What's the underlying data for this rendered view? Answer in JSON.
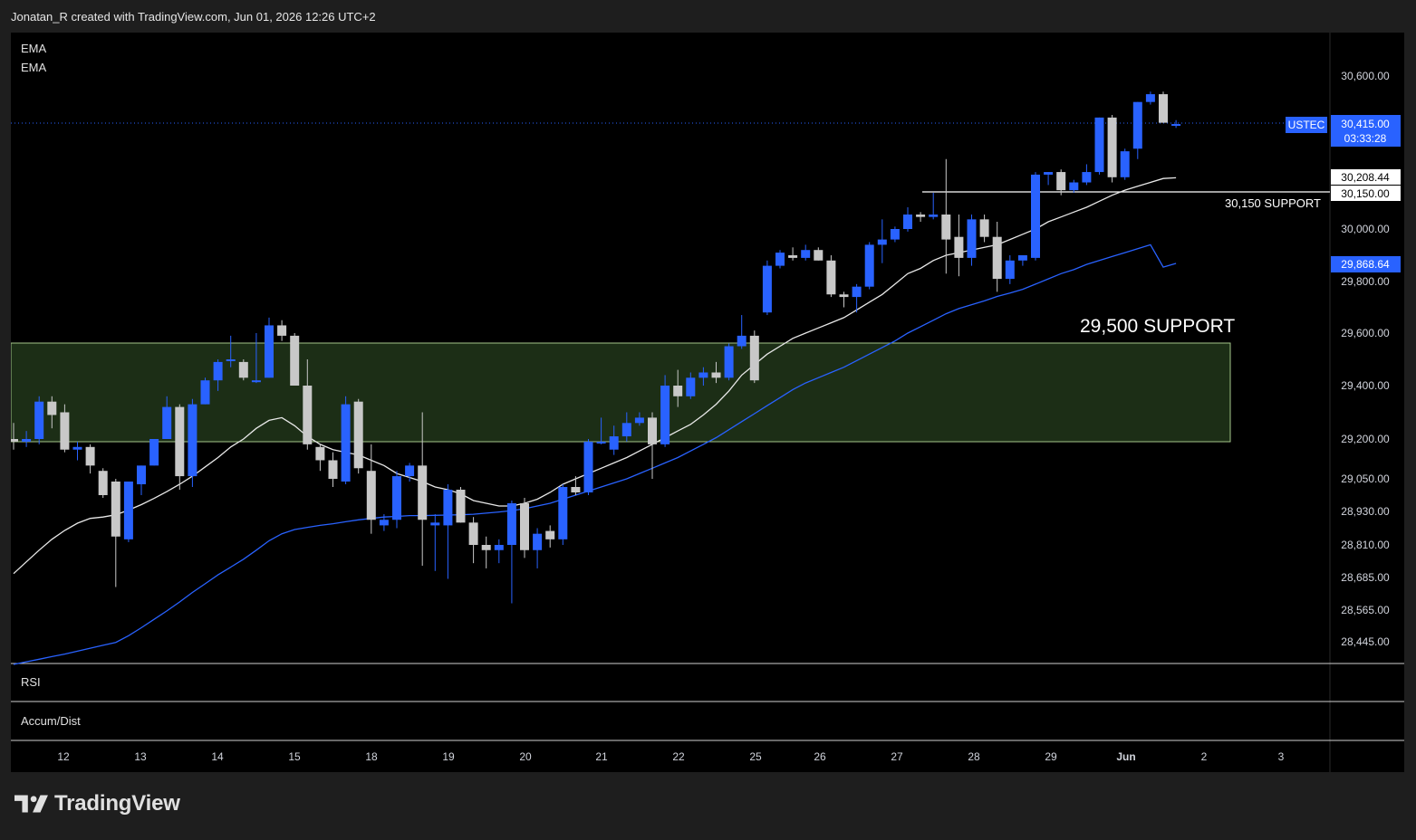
{
  "header": {
    "attribution": "Jonatan_R created with TradingView.com, Jun 01, 2026 12:26 UTC+2"
  },
  "footer": {
    "brand": "TradingView"
  },
  "indicators": {
    "ema1": "EMA",
    "ema2": "EMA",
    "rsi": "RSI",
    "accum": "Accum/Dist"
  },
  "price_axis": {
    "symbol": "USTEC",
    "last_price": "30,415.00",
    "countdown": "03:33:28",
    "ema_fast_label": "30,208.44",
    "support_label": "30,150.00",
    "ema_slow_label": "29,868.64"
  },
  "annotations": {
    "support_small": "30,150 SUPPORT",
    "support_big": "29,500 SUPPORT"
  },
  "colors": {
    "up": "#2962ff",
    "down": "#c8c8c8",
    "ema_fast": "#e8e8e8",
    "ema_slow": "#2962ff",
    "zone_fill": "#1c2e16",
    "zone_border": "#a5c58a"
  },
  "chart_data": {
    "type": "candlestick",
    "symbol": "USTEC",
    "timeframe_note": "hourly-like candles, ~7 per day",
    "y_ticks": [
      30600,
      30150,
      30000,
      29800,
      29600,
      29400,
      29200,
      29050,
      28930,
      28810,
      28685,
      28565,
      28445
    ],
    "y_tick_labels": [
      "30,600.00",
      "30,150.00",
      "30,000.00",
      "29,800.00",
      "29,600.00",
      "29,400.00",
      "29,200.00",
      "29,050.00",
      "28,930.00",
      "28,810.00",
      "28,685.00",
      "28,565.00",
      "28,445.00"
    ],
    "x_ticks": [
      "12",
      "13",
      "14",
      "15",
      "18",
      "19",
      "20",
      "21",
      "22",
      "25",
      "26",
      "27",
      "28",
      "29",
      "Jun",
      "2",
      "3"
    ],
    "candles": [
      {
        "o": 29200,
        "h": 29260,
        "l": 29160,
        "c": 29190
      },
      {
        "o": 29190,
        "h": 29230,
        "l": 29170,
        "c": 29200
      },
      {
        "o": 29200,
        "h": 29360,
        "l": 29180,
        "c": 29340
      },
      {
        "o": 29340,
        "h": 29360,
        "l": 29240,
        "c": 29290
      },
      {
        "o": 29300,
        "h": 29330,
        "l": 29150,
        "c": 29160
      },
      {
        "o": 29160,
        "h": 29190,
        "l": 29120,
        "c": 29170
      },
      {
        "o": 29170,
        "h": 29180,
        "l": 29070,
        "c": 29100
      },
      {
        "o": 29080,
        "h": 29090,
        "l": 28980,
        "c": 28990
      },
      {
        "o": 29040,
        "h": 29050,
        "l": 28650,
        "c": 28840
      },
      {
        "o": 28830,
        "h": 29040,
        "l": 28820,
        "c": 29040
      },
      {
        "o": 29030,
        "h": 29100,
        "l": 28990,
        "c": 29100
      },
      {
        "o": 29100,
        "h": 29200,
        "l": 29100,
        "c": 29200
      },
      {
        "o": 29200,
        "h": 29360,
        "l": 29200,
        "c": 29320
      },
      {
        "o": 29320,
        "h": 29330,
        "l": 29010,
        "c": 29060
      },
      {
        "o": 29060,
        "h": 29350,
        "l": 29020,
        "c": 29330
      },
      {
        "o": 29330,
        "h": 29430,
        "l": 29330,
        "c": 29420
      },
      {
        "o": 29420,
        "h": 29500,
        "l": 29380,
        "c": 29490
      },
      {
        "o": 29500,
        "h": 29590,
        "l": 29470,
        "c": 29500
      },
      {
        "o": 29490,
        "h": 29500,
        "l": 29420,
        "c": 29430
      },
      {
        "o": 29420,
        "h": 29600,
        "l": 29410,
        "c": 29420
      },
      {
        "o": 29430,
        "h": 29660,
        "l": 29430,
        "c": 29630
      },
      {
        "o": 29630,
        "h": 29650,
        "l": 29570,
        "c": 29590
      },
      {
        "o": 29590,
        "h": 29600,
        "l": 29400,
        "c": 29400
      },
      {
        "o": 29400,
        "h": 29500,
        "l": 29160,
        "c": 29180
      },
      {
        "o": 29170,
        "h": 29180,
        "l": 29080,
        "c": 29120
      },
      {
        "o": 29120,
        "h": 29150,
        "l": 29020,
        "c": 29050
      },
      {
        "o": 29040,
        "h": 29360,
        "l": 29030,
        "c": 29330
      },
      {
        "o": 29340,
        "h": 29350,
        "l": 29070,
        "c": 29090
      },
      {
        "o": 29080,
        "h": 29180,
        "l": 28850,
        "c": 28900
      },
      {
        "o": 28880,
        "h": 28920,
        "l": 28860,
        "c": 28900
      },
      {
        "o": 28900,
        "h": 29080,
        "l": 28870,
        "c": 29060
      },
      {
        "o": 29060,
        "h": 29110,
        "l": 29040,
        "c": 29100
      },
      {
        "o": 29100,
        "h": 29300,
        "l": 28730,
        "c": 28900
      },
      {
        "o": 28880,
        "h": 28920,
        "l": 28710,
        "c": 28890
      },
      {
        "o": 28880,
        "h": 29030,
        "l": 28680,
        "c": 29010
      },
      {
        "o": 29010,
        "h": 29020,
        "l": 28890,
        "c": 28890
      },
      {
        "o": 28890,
        "h": 28910,
        "l": 28740,
        "c": 28810
      },
      {
        "o": 28810,
        "h": 28840,
        "l": 28720,
        "c": 28790
      },
      {
        "o": 28790,
        "h": 28830,
        "l": 28740,
        "c": 28810
      },
      {
        "o": 28810,
        "h": 28970,
        "l": 28590,
        "c": 28960
      },
      {
        "o": 28960,
        "h": 28980,
        "l": 28760,
        "c": 28790
      },
      {
        "o": 28790,
        "h": 28870,
        "l": 28720,
        "c": 28850
      },
      {
        "o": 28860,
        "h": 28880,
        "l": 28800,
        "c": 28830
      },
      {
        "o": 28830,
        "h": 29030,
        "l": 28810,
        "c": 29020
      },
      {
        "o": 29020,
        "h": 29060,
        "l": 28990,
        "c": 29000
      },
      {
        "o": 29000,
        "h": 29200,
        "l": 28990,
        "c": 29190
      },
      {
        "o": 29190,
        "h": 29280,
        "l": 29180,
        "c": 29190
      },
      {
        "o": 29160,
        "h": 29250,
        "l": 29140,
        "c": 29210
      },
      {
        "o": 29210,
        "h": 29300,
        "l": 29190,
        "c": 29260
      },
      {
        "o": 29260,
        "h": 29300,
        "l": 29250,
        "c": 29280
      },
      {
        "o": 29280,
        "h": 29300,
        "l": 29050,
        "c": 29180
      },
      {
        "o": 29180,
        "h": 29440,
        "l": 29170,
        "c": 29400
      },
      {
        "o": 29400,
        "h": 29460,
        "l": 29320,
        "c": 29360
      },
      {
        "o": 29360,
        "h": 29450,
        "l": 29350,
        "c": 29430
      },
      {
        "o": 29430,
        "h": 29470,
        "l": 29400,
        "c": 29450
      },
      {
        "o": 29450,
        "h": 29490,
        "l": 29410,
        "c": 29430
      },
      {
        "o": 29430,
        "h": 29560,
        "l": 29420,
        "c": 29550
      },
      {
        "o": 29550,
        "h": 29670,
        "l": 29540,
        "c": 29590
      },
      {
        "o": 29590,
        "h": 29610,
        "l": 29410,
        "c": 29420
      },
      {
        "o": 29680,
        "h": 29880,
        "l": 29670,
        "c": 29860
      },
      {
        "o": 29860,
        "h": 29920,
        "l": 29850,
        "c": 29910
      },
      {
        "o": 29900,
        "h": 29930,
        "l": 29880,
        "c": 29890
      },
      {
        "o": 29890,
        "h": 29940,
        "l": 29880,
        "c": 29920
      },
      {
        "o": 29920,
        "h": 29930,
        "l": 29880,
        "c": 29880
      },
      {
        "o": 29880,
        "h": 29900,
        "l": 29740,
        "c": 29750
      },
      {
        "o": 29750,
        "h": 29760,
        "l": 29700,
        "c": 29740
      },
      {
        "o": 29740,
        "h": 29790,
        "l": 29680,
        "c": 29780
      },
      {
        "o": 29780,
        "h": 29950,
        "l": 29770,
        "c": 29940
      },
      {
        "o": 29940,
        "h": 30040,
        "l": 29870,
        "c": 29960
      },
      {
        "o": 29960,
        "h": 30010,
        "l": 29950,
        "c": 30000
      },
      {
        "o": 30000,
        "h": 30090,
        "l": 29990,
        "c": 30060
      },
      {
        "o": 30060,
        "h": 30070,
        "l": 30030,
        "c": 30050
      },
      {
        "o": 30050,
        "h": 30150,
        "l": 30040,
        "c": 30060
      },
      {
        "o": 30060,
        "h": 30280,
        "l": 29830,
        "c": 29960
      },
      {
        "o": 29970,
        "h": 30060,
        "l": 29820,
        "c": 29890
      },
      {
        "o": 29890,
        "h": 30060,
        "l": 29860,
        "c": 30040
      },
      {
        "o": 30040,
        "h": 30060,
        "l": 29950,
        "c": 29970
      },
      {
        "o": 29970,
        "h": 30030,
        "l": 29760,
        "c": 29810
      },
      {
        "o": 29810,
        "h": 29900,
        "l": 29790,
        "c": 29880
      },
      {
        "o": 29880,
        "h": 29900,
        "l": 29860,
        "c": 29900
      },
      {
        "o": 29890,
        "h": 30230,
        "l": 29880,
        "c": 30220
      },
      {
        "o": 30220,
        "h": 30230,
        "l": 30180,
        "c": 30230
      },
      {
        "o": 30230,
        "h": 30240,
        "l": 30140,
        "c": 30160
      },
      {
        "o": 30160,
        "h": 30200,
        "l": 30150,
        "c": 30190
      },
      {
        "o": 30190,
        "h": 30260,
        "l": 30180,
        "c": 30230
      },
      {
        "o": 30230,
        "h": 30440,
        "l": 30220,
        "c": 30440
      },
      {
        "o": 30440,
        "h": 30450,
        "l": 30190,
        "c": 30210
      },
      {
        "o": 30210,
        "h": 30320,
        "l": 30200,
        "c": 30310
      },
      {
        "o": 30320,
        "h": 30500,
        "l": 30280,
        "c": 30500
      },
      {
        "o": 30500,
        "h": 30540,
        "l": 30490,
        "c": 30530
      },
      {
        "o": 30530,
        "h": 30540,
        "l": 30420,
        "c": 30420
      },
      {
        "o": 30410,
        "h": 30430,
        "l": 30400,
        "c": 30415
      }
    ],
    "ema_fast": [
      28700,
      28745,
      28790,
      28830,
      28862,
      28888,
      28905,
      28910,
      28918,
      28935,
      28955,
      28978,
      29003,
      29030,
      29060,
      29095,
      29130,
      29170,
      29200,
      29240,
      29270,
      29280,
      29250,
      29210,
      29180,
      29160,
      29150,
      29140,
      29120,
      29100,
      29070,
      29055,
      29040,
      29020,
      29010,
      28995,
      28970,
      28960,
      28950,
      28950,
      28960,
      28975,
      29000,
      29030,
      29050,
      29070,
      29090,
      29110,
      29130,
      29155,
      29180,
      29205,
      29230,
      29255,
      29290,
      29330,
      29380,
      29440,
      29480,
      29520,
      29550,
      29580,
      29600,
      29620,
      29640,
      29660,
      29690,
      29720,
      29750,
      29790,
      29830,
      29850,
      29880,
      29900,
      29910,
      29920,
      29930,
      29940,
      29960,
      29980,
      30000,
      30030,
      30050,
      30070,
      30090,
      30115,
      30140,
      30160,
      30175,
      30190,
      30205,
      30208
    ],
    "ema_slow": [
      28270,
      28290,
      28310,
      28330,
      28350,
      28372,
      28395,
      28418,
      28440,
      28468,
      28498,
      28530,
      28562,
      28595,
      28630,
      28662,
      28695,
      28725,
      28755,
      28790,
      28825,
      28850,
      28865,
      28873,
      28880,
      28886,
      28893,
      28900,
      28905,
      28910,
      28912,
      28915,
      28915,
      28916,
      28917,
      28918,
      28920,
      28924,
      28928,
      28933,
      28940,
      28950,
      28960,
      28975,
      28990,
      29005,
      29020,
      29035,
      29050,
      29070,
      29090,
      29110,
      29130,
      29155,
      29180,
      29205,
      29235,
      29265,
      29295,
      29325,
      29355,
      29385,
      29410,
      29430,
      29450,
      29470,
      29495,
      29520,
      29545,
      29570,
      29600,
      29625,
      29650,
      29675,
      29695,
      29710,
      29725,
      29742,
      29755,
      29770,
      29790,
      29810,
      29830,
      29845,
      29865,
      29880,
      29895,
      29910,
      29925,
      29940,
      29855,
      29869
    ],
    "support_levels": [
      {
        "price": 30150,
        "label": "30,150 SUPPORT"
      },
      {
        "zone_low": 29200,
        "zone_high": 29580,
        "label": "29,500 SUPPORT"
      }
    ],
    "last_price": 30415,
    "legend": [
      "EMA",
      "EMA"
    ],
    "panes": [
      "RSI",
      "Accum/Dist"
    ]
  }
}
